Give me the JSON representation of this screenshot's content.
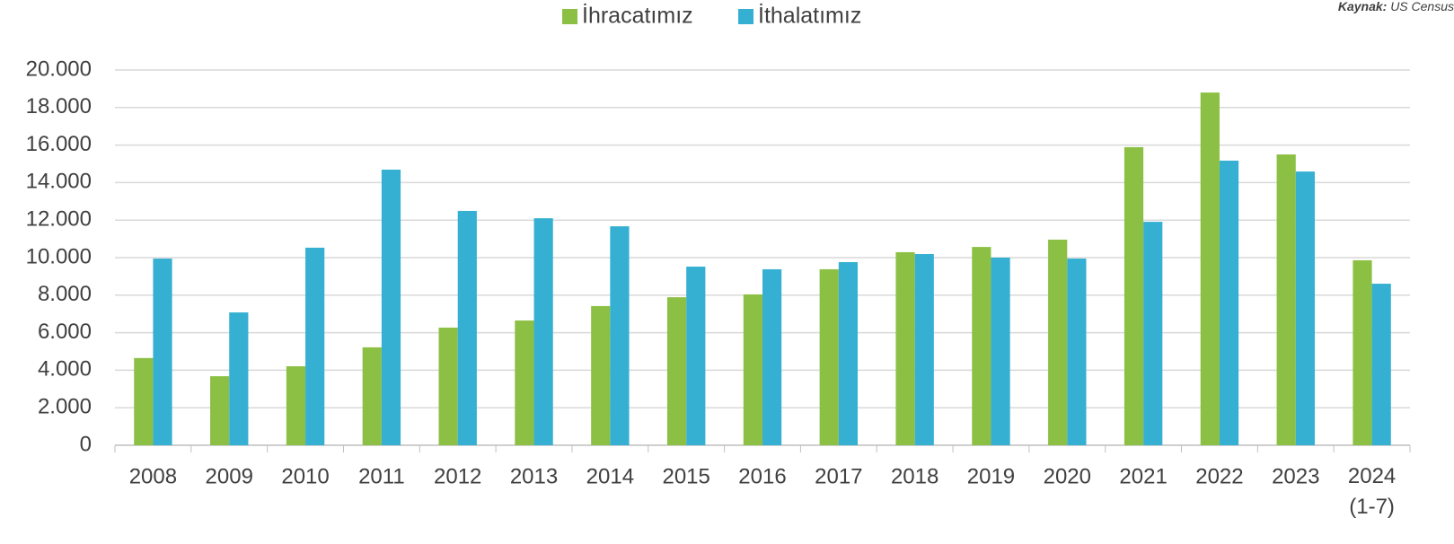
{
  "chart_data": {
    "type": "bar",
    "source_label": "Kaynak:",
    "source": "US Census",
    "categories": [
      "2008",
      "2009",
      "2010",
      "2011",
      "2012",
      "2013",
      "2014",
      "2015",
      "2016",
      "2017",
      "2018",
      "2019",
      "2020",
      "2021",
      "2022",
      "2023",
      "2024\n(1-7)"
    ],
    "series": [
      {
        "name": "İhracatımız",
        "color": "#8cc044",
        "values": [
          4650,
          3680,
          4210,
          5220,
          6270,
          6650,
          7420,
          7890,
          8040,
          9380,
          10290,
          10570,
          10960,
          15890,
          18800,
          15500,
          9860
        ]
      },
      {
        "name": "İthalatımız",
        "color": "#36b0d2",
        "values": [
          9950,
          7080,
          10530,
          14690,
          12490,
          12100,
          11670,
          9520,
          9380,
          9760,
          10190,
          10000,
          9950,
          11910,
          15170,
          14590,
          8610
        ]
      }
    ],
    "ylim": [
      0,
      20000
    ],
    "yticks": [
      0,
      {
        "value": 2000,
        "label": "2.000"
      },
      {
        "value": 4000,
        "label": "4.000"
      },
      {
        "value": 6000,
        "label": "6.000"
      },
      {
        "value": 8000,
        "label": "8.000"
      },
      {
        "value": 10000,
        "label": "10.000"
      },
      {
        "value": 12000,
        "label": "12.000"
      },
      {
        "value": 14000,
        "label": "14.000"
      },
      {
        "value": 16000,
        "label": "16.000"
      },
      {
        "value": 18000,
        "label": "18.000"
      },
      {
        "value": 20000,
        "label": "20.000"
      }
    ],
    "grid": true,
    "legend": "top"
  }
}
